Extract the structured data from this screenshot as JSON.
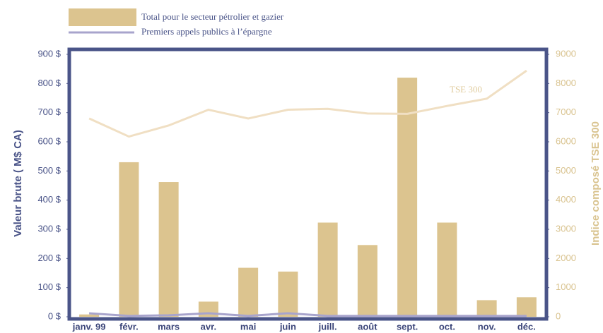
{
  "chart_data": {
    "type": "bar",
    "y_label": "Valeur brute ( M$ CA)",
    "y2_label": "Indice composé TSE 300",
    "categories": [
      "janv. 99",
      "févr.",
      "mars",
      "avr.",
      "mai",
      "juin",
      "juill.",
      "août",
      "sept.",
      "oct.",
      "nov.",
      "déc."
    ],
    "series": [
      {
        "name": "Total pour le secteur pétrolier et gazier",
        "type": "bar",
        "color": "#dcc48f",
        "values": [
          8,
          530,
          462,
          52,
          168,
          155,
          323,
          246,
          820,
          323,
          57,
          67
        ]
      },
      {
        "name": "Premiers appels publics à l’épargne",
        "type": "line",
        "color": "#a8a4cc",
        "values": [
          12,
          3,
          5,
          12,
          3,
          12,
          3,
          3,
          3,
          3,
          3,
          3
        ]
      },
      {
        "name": "TSE 300",
        "type": "line",
        "axis": "y2",
        "color": "#f0dfc3",
        "values": [
          6800,
          6180,
          6560,
          7100,
          6800,
          7100,
          7130,
          6970,
          6960,
          7230,
          7480,
          8440
        ]
      }
    ],
    "ylim": [
      0,
      900
    ],
    "yticks": [
      {
        "value": 0,
        "label": "0 $"
      },
      {
        "value": 100,
        "label": "100 $"
      },
      {
        "value": 200,
        "label": "200 $"
      },
      {
        "value": 300,
        "label": "300 $"
      },
      {
        "value": 400,
        "label": "400 $"
      },
      {
        "value": 500,
        "label": "500 $"
      },
      {
        "value": 600,
        "label": "600 $"
      },
      {
        "value": 700,
        "label": "700 $"
      },
      {
        "value": 800,
        "label": "800 $"
      },
      {
        "value": 900,
        "label": "900 $"
      }
    ],
    "y2lim": [
      0,
      9000
    ],
    "y2ticks": [
      0,
      1000,
      2000,
      3000,
      4000,
      5000,
      6000,
      7000,
      8000,
      9000
    ]
  }
}
